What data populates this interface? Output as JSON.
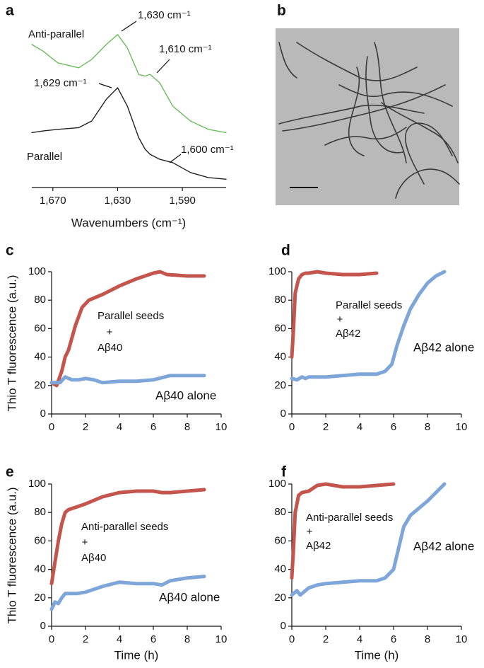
{
  "chart_data": [
    {
      "type": "line",
      "panel_label": "a",
      "xlabel": "Wavenumbers (cm⁻¹)",
      "xlim": [
        1683,
        1563
      ],
      "ylim": [
        0,
        1
      ],
      "xticks": [
        {
          "value": 1670,
          "label": "1,670"
        },
        {
          "value": 1630,
          "label": "1,630"
        },
        {
          "value": 1590,
          "label": "1,590"
        }
      ],
      "series": [
        {
          "name": "Anti-parallel",
          "color": "#6dbb5e",
          "x": [
            1683,
            1676,
            1667,
            1654,
            1646,
            1637,
            1630,
            1624,
            1617,
            1613,
            1610,
            1604,
            1596,
            1585,
            1574,
            1563
          ],
          "values": [
            0.86,
            0.82,
            0.75,
            0.72,
            0.77,
            0.86,
            0.92,
            0.84,
            0.68,
            0.67,
            0.68,
            0.63,
            0.49,
            0.4,
            0.35,
            0.33
          ]
        },
        {
          "name": "Parallel",
          "color": "#222222",
          "x": [
            1683,
            1676,
            1667,
            1654,
            1646,
            1637,
            1630,
            1624,
            1617,
            1613,
            1610,
            1604,
            1596,
            1585,
            1574,
            1563
          ],
          "values": [
            0.33,
            0.34,
            0.35,
            0.36,
            0.4,
            0.53,
            0.6,
            0.49,
            0.3,
            0.23,
            0.2,
            0.17,
            0.15,
            0.09,
            0.06,
            0.05
          ]
        }
      ],
      "annotations": [
        "1,630 cm⁻¹",
        "1,610 cm⁻¹",
        "1,629 cm⁻¹",
        "1,600 cm⁻¹"
      ]
    },
    {
      "type": "image",
      "panel_label": "b"
    },
    {
      "type": "line",
      "panel_label": "c",
      "ylabel": "Thio T fluorescence (a.u.)",
      "xlim": [
        0,
        10
      ],
      "ylim": [
        0,
        100
      ],
      "xticks": [
        0,
        2,
        4,
        6,
        8,
        10
      ],
      "yticks": [
        0,
        20,
        40,
        60,
        80,
        100
      ],
      "series": [
        {
          "color": "#c4554d",
          "x": [
            0,
            0.3,
            0.6,
            0.8,
            1,
            1.4,
            1.8,
            2.2,
            3,
            4,
            5,
            6,
            6.4,
            6.8,
            8,
            9
          ],
          "values": [
            22,
            20,
            30,
            40,
            45,
            62,
            75,
            80,
            84,
            90,
            95,
            99,
            100,
            98,
            97,
            97
          ]
        },
        {
          "color": "#7ea6d8",
          "x": [
            0,
            0.5,
            0.8,
            1.2,
            1.6,
            2,
            2.5,
            3,
            4,
            5,
            6,
            7,
            8,
            9
          ],
          "values": [
            22,
            22,
            26,
            24,
            24,
            25,
            24,
            22,
            23,
            23,
            24,
            27,
            27,
            27
          ]
        }
      ],
      "annotations": [
        "Parallel seeds",
        "+",
        "Aβ40",
        "Aβ40 alone"
      ]
    },
    {
      "type": "line",
      "panel_label": "d",
      "xlim": [
        0,
        10
      ],
      "ylim": [
        0,
        100
      ],
      "xticks": [
        0,
        2,
        4,
        6,
        8,
        10
      ],
      "yticks": [
        0,
        20,
        40,
        60,
        80,
        100
      ],
      "series": [
        {
          "color": "#c4554d",
          "x": [
            0,
            0.1,
            0.2,
            0.4,
            0.6,
            0.8,
            1,
            1.5,
            2,
            3,
            4,
            5
          ],
          "values": [
            40,
            60,
            85,
            95,
            98,
            99,
            99,
            100,
            99,
            98,
            98,
            99
          ]
        },
        {
          "color": "#7ea6d8",
          "x": [
            0,
            0.3,
            0.6,
            0.8,
            1,
            2,
            3,
            4,
            5,
            5.5,
            5.9,
            6.2,
            6.6,
            7,
            7.5,
            8,
            8.5,
            9
          ],
          "values": [
            25,
            24,
            26,
            25,
            26,
            26,
            27,
            28,
            28,
            30,
            35,
            48,
            62,
            74,
            84,
            92,
            97,
            100
          ]
        }
      ],
      "annotations": [
        "Parallel seeds",
        "+",
        "Aβ42",
        "Aβ42 alone"
      ]
    },
    {
      "type": "line",
      "panel_label": "e",
      "ylabel": "Thio T fluorescence (a.u.)",
      "xlabel": "Time (h)",
      "xlim": [
        0,
        10
      ],
      "ylim": [
        0,
        100
      ],
      "xticks": [
        0,
        2,
        4,
        6,
        8,
        10
      ],
      "yticks": [
        0,
        20,
        40,
        60,
        80,
        100
      ],
      "series": [
        {
          "color": "#c4554d",
          "x": [
            0,
            0.2,
            0.4,
            0.6,
            0.8,
            1,
            1.5,
            2,
            3,
            4,
            5,
            6,
            6.5,
            7,
            8,
            9
          ],
          "values": [
            30,
            45,
            60,
            72,
            80,
            82,
            84,
            86,
            91,
            94,
            95,
            95,
            94,
            94,
            95,
            96
          ]
        },
        {
          "color": "#7ea6d8",
          "x": [
            0,
            0.2,
            0.4,
            0.6,
            0.8,
            1,
            1.5,
            2,
            3,
            4,
            5,
            6,
            6.5,
            7,
            8,
            9
          ],
          "values": [
            12,
            17,
            16,
            20,
            23,
            23,
            23,
            24,
            28,
            31,
            30,
            30,
            29,
            32,
            34,
            35
          ]
        }
      ],
      "annotations": [
        "Anti-parallel seeds",
        "+",
        "Aβ40",
        "Aβ40 alone"
      ]
    },
    {
      "type": "line",
      "panel_label": "f",
      "xlabel": "Time (h)",
      "xlim": [
        0,
        10
      ],
      "ylim": [
        0,
        100
      ],
      "xticks": [
        0,
        2,
        4,
        6,
        8,
        10
      ],
      "yticks": [
        0,
        20,
        40,
        60,
        80,
        100
      ],
      "series": [
        {
          "color": "#c4554d",
          "x": [
            0,
            0.1,
            0.2,
            0.4,
            0.6,
            1,
            1.5,
            2,
            3,
            4,
            5,
            6
          ],
          "values": [
            34,
            55,
            80,
            92,
            94,
            95,
            99,
            100,
            98,
            98,
            99,
            100
          ]
        },
        {
          "color": "#7ea6d8",
          "x": [
            0,
            0.3,
            0.5,
            0.8,
            1,
            1.5,
            2,
            3,
            4,
            5,
            5.5,
            6,
            6.3,
            6.6,
            7,
            8,
            9
          ],
          "values": [
            22,
            25,
            22,
            25,
            27,
            29,
            30,
            31,
            32,
            32,
            34,
            40,
            55,
            70,
            78,
            88,
            100
          ]
        }
      ],
      "annotations": [
        "Anti-parallel seeds",
        "+",
        "Aβ42",
        "Aβ42 alone"
      ]
    }
  ]
}
